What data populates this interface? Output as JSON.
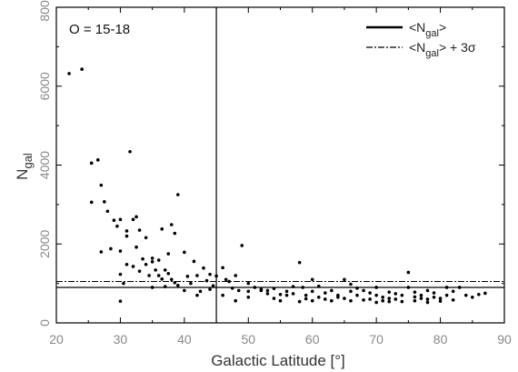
{
  "chart_data": {
    "type": "scatter",
    "panel_label": "O = 15-18",
    "xlabel": "Galactic Latitude [°]",
    "ylabel": {
      "main": "N",
      "sub": "gal"
    },
    "xlim": [
      20,
      90
    ],
    "ylim": [
      0,
      8000
    ],
    "x_ticks": [
      20,
      30,
      40,
      50,
      60,
      70,
      80,
      90
    ],
    "y_ticks": [
      0,
      2000,
      4000,
      6000,
      8000
    ],
    "grid": false,
    "legend_position": "top-right",
    "legend": [
      {
        "style": "solid",
        "parts": [
          "<N",
          "gal",
          ">"
        ]
      },
      {
        "style": "dash-dot",
        "parts": [
          "<N",
          "gal",
          "> + 3σ"
        ]
      }
    ],
    "reference_lines": {
      "mean": 900,
      "mean_plus_3sigma": 1050,
      "vertical_x": 45
    },
    "series": [
      {
        "points": [
          [
            22,
            6320
          ],
          [
            24,
            6430
          ],
          [
            25.5,
            4050
          ],
          [
            26.5,
            4130
          ],
          [
            25.5,
            3060
          ],
          [
            27,
            3490
          ],
          [
            27.5,
            3070
          ],
          [
            28,
            2830
          ],
          [
            29,
            2600
          ],
          [
            29.5,
            2450
          ],
          [
            30,
            2620
          ],
          [
            30,
            1820
          ],
          [
            31,
            2200
          ],
          [
            31,
            2330
          ],
          [
            31.5,
            4340
          ],
          [
            32,
            2620
          ],
          [
            32.5,
            2690
          ],
          [
            33,
            2350
          ],
          [
            34,
            2160
          ],
          [
            35,
            1640
          ],
          [
            36,
            1590
          ],
          [
            36.5,
            2380
          ],
          [
            37,
            1340
          ],
          [
            37.5,
            1750
          ],
          [
            38,
            2490
          ],
          [
            38.5,
            2270
          ],
          [
            39,
            3250
          ],
          [
            27,
            1800
          ],
          [
            28.5,
            1880
          ],
          [
            30,
            1230
          ],
          [
            30.5,
            1000
          ],
          [
            31,
            1480
          ],
          [
            32,
            1430
          ],
          [
            32.5,
            1920
          ],
          [
            33,
            1310
          ],
          [
            33.5,
            1620
          ],
          [
            34,
            1480
          ],
          [
            34.5,
            1200
          ],
          [
            35,
            1550
          ],
          [
            35.5,
            1340
          ],
          [
            36,
            1200
          ],
          [
            36.5,
            1110
          ],
          [
            37,
            920
          ],
          [
            37.5,
            1250
          ],
          [
            38,
            1100
          ],
          [
            38.5,
            1020
          ],
          [
            39,
            950
          ],
          [
            40,
            1790
          ],
          [
            40.5,
            1180
          ],
          [
            41,
            1000
          ],
          [
            41.5,
            1560
          ],
          [
            42,
            1200
          ],
          [
            42.5,
            800
          ],
          [
            43,
            1390
          ],
          [
            43.5,
            1070
          ],
          [
            44,
            1230
          ],
          [
            44.5,
            940
          ],
          [
            45,
            1190
          ],
          [
            46,
            1400
          ],
          [
            46.5,
            1100
          ],
          [
            47,
            1050
          ],
          [
            47.5,
            880
          ],
          [
            48,
            1200
          ],
          [
            48.5,
            820
          ],
          [
            49,
            1960
          ],
          [
            50,
            1000
          ],
          [
            51,
            900
          ],
          [
            52,
            850
          ],
          [
            53,
            820
          ],
          [
            54,
            870
          ],
          [
            55,
            720
          ],
          [
            56,
            800
          ],
          [
            57,
            740
          ],
          [
            58,
            1530
          ],
          [
            58.5,
            900
          ],
          [
            59,
            700
          ],
          [
            60,
            800
          ],
          [
            61,
            650
          ],
          [
            62,
            760
          ],
          [
            63,
            820
          ],
          [
            64,
            650
          ],
          [
            65,
            1100
          ],
          [
            66,
            800
          ],
          [
            67,
            700
          ],
          [
            68,
            820
          ],
          [
            69,
            600
          ],
          [
            70,
            700
          ],
          [
            71,
            650
          ],
          [
            72,
            780
          ],
          [
            73,
            600
          ],
          [
            74,
            700
          ],
          [
            75,
            1280
          ],
          [
            76,
            780
          ],
          [
            77,
            700
          ],
          [
            78,
            600
          ],
          [
            79,
            650
          ],
          [
            80,
            550
          ],
          [
            81,
            700
          ],
          [
            82,
            800
          ],
          [
            83,
            900
          ],
          [
            85,
            650
          ],
          [
            87,
            750
          ],
          [
            30,
            550
          ],
          [
            35,
            900
          ],
          [
            40,
            820
          ],
          [
            42,
            700
          ],
          [
            44,
            850
          ],
          [
            46,
            700
          ],
          [
            50,
            650
          ],
          [
            52,
            820
          ],
          [
            54,
            620
          ],
          [
            56,
            700
          ],
          [
            58,
            540
          ],
          [
            60,
            560
          ],
          [
            62,
            600
          ],
          [
            64,
            700
          ],
          [
            66,
            560
          ],
          [
            68,
            580
          ],
          [
            70,
            520
          ],
          [
            72,
            620
          ],
          [
            74,
            540
          ],
          [
            76,
            660
          ],
          [
            78,
            520
          ],
          [
            80,
            620
          ],
          [
            82,
            580
          ],
          [
            84,
            700
          ],
          [
            86,
            720
          ],
          [
            53,
            740
          ],
          [
            57,
            920
          ],
          [
            59,
            610
          ],
          [
            61,
            930
          ],
          [
            63,
            560
          ],
          [
            65,
            620
          ],
          [
            67,
            880
          ],
          [
            69,
            760
          ],
          [
            71,
            560
          ],
          [
            73,
            740
          ],
          [
            75,
            900
          ],
          [
            77,
            620
          ],
          [
            79,
            760
          ],
          [
            81,
            900
          ],
          [
            55,
            560
          ],
          [
            60,
            1100
          ],
          [
            66,
            980
          ],
          [
            70,
            900
          ],
          [
            72,
            540
          ],
          [
            76,
            560
          ],
          [
            78,
            820
          ],
          [
            48,
            560
          ],
          [
            50,
            800
          ]
        ]
      }
    ]
  }
}
